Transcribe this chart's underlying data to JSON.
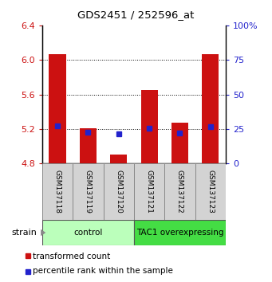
{
  "title": "GDS2451 / 252596_at",
  "samples": [
    "GSM137118",
    "GSM137119",
    "GSM137120",
    "GSM137121",
    "GSM137122",
    "GSM137123"
  ],
  "red_values": [
    6.07,
    5.21,
    4.9,
    5.65,
    5.27,
    6.07
  ],
  "blue_values": [
    5.24,
    5.16,
    5.14,
    5.21,
    5.15,
    5.23
  ],
  "ymin": 4.8,
  "ymax": 6.4,
  "yticks": [
    4.8,
    5.2,
    5.6,
    6.0,
    6.4
  ],
  "ytick_labels": [
    "4.8",
    "5.2",
    "5.6",
    "6.0",
    "6.4"
  ],
  "y2ticks": [
    0,
    25,
    50,
    75,
    100
  ],
  "y2labels": [
    "0",
    "25",
    "50",
    "75",
    "100%"
  ],
  "bar_bottom": 4.8,
  "bar_color": "#cc1111",
  "blue_color": "#2222cc",
  "groups": [
    {
      "label": "control",
      "indices": [
        0,
        1,
        2
      ],
      "color": "#bbffbb"
    },
    {
      "label": "TAC1 overexpressing",
      "indices": [
        3,
        4,
        5
      ],
      "color": "#44dd44"
    }
  ],
  "legend_red": "transformed count",
  "legend_blue": "percentile rank within the sample",
  "bar_width": 0.55,
  "figsize": [
    3.41,
    3.54
  ],
  "dpi": 100,
  "strain_label": "strain"
}
